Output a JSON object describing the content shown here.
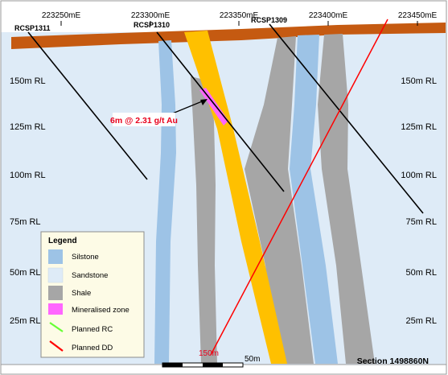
{
  "eastings": [
    "223250mE",
    "223300mE",
    "223350mE",
    "223400mE",
    "223450mE"
  ],
  "rl_labels": [
    "150m RL",
    "125m RL",
    "100m RL",
    "75m RL",
    "50m RL",
    "25m RL"
  ],
  "drillholes": [
    {
      "id": "RCSP1311"
    },
    {
      "id": "RCSP1310"
    },
    {
      "id": "RCSP1309"
    }
  ],
  "intercept": {
    "text": "6m @ 2.31 g/t Au",
    "color": "#e8001c"
  },
  "planned_dd_depth_label": "150m",
  "scale_label": "50m",
  "section_label": "Section 1498860N",
  "legend": {
    "title": "Legend",
    "items": [
      {
        "label": "Silstone",
        "color": "#9dc3e6",
        "kind": "swatch"
      },
      {
        "label": "Sandstone",
        "color": "#deebf7",
        "kind": "swatch"
      },
      {
        "label": "Shale",
        "color": "#a6a6a6",
        "kind": "swatch"
      },
      {
        "label": "Mineralised zone",
        "color": "#ff66ff",
        "kind": "swatch"
      },
      {
        "label": "Planned RC",
        "color": "#66ff33",
        "kind": "line"
      },
      {
        "label": "Planned DD",
        "color": "#ff0000",
        "kind": "line"
      }
    ]
  },
  "colors": {
    "topsoil": "#c55a11",
    "sandstone": "#deebf7",
    "silstone": "#9dc3e6",
    "shale": "#a6a6a6",
    "ore_body": "#ffc000",
    "mineralised": "#ff66ff",
    "planned_dd": "#ff0000",
    "drill_trace": "#000000"
  }
}
